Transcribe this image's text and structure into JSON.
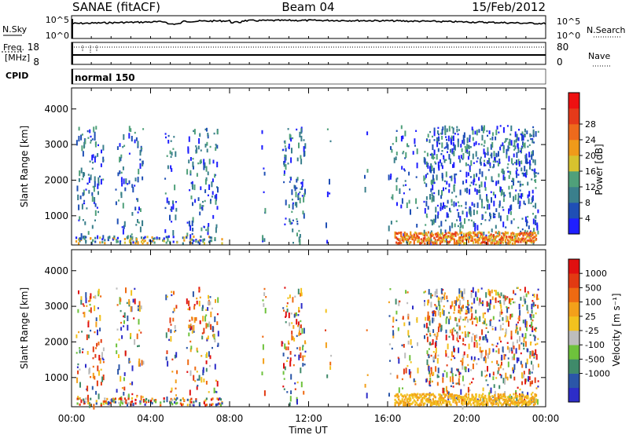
{
  "header": {
    "station": "SANAE (fitACF)",
    "beam": "Beam 04",
    "date": "15/Feb/2012"
  },
  "noise_panel": {
    "left_label": "N.Sky",
    "right_label": "N.Search",
    "left_ticks": [
      "10^5",
      "10^0"
    ],
    "right_ticks": [
      "10^5",
      "10^0"
    ]
  },
  "freq_panel": {
    "left_label_1": "Freq.",
    "left_label_2": "[MHz]",
    "right_label": "Nave",
    "left_ticks": [
      "18",
      "8"
    ],
    "right_ticks": [
      "80",
      "0"
    ]
  },
  "cpid": {
    "label": "CPID",
    "mode": "normal 150"
  },
  "chart_data": [
    {
      "type": "heatmap",
      "quantity": "Power",
      "ylabel": "Slant Range [km]",
      "colorbar_label": "Power [dB]",
      "x_range": [
        "00:00",
        "24:00"
      ],
      "ylim": [
        180,
        4590
      ],
      "y_ticks": [
        1000,
        2000,
        3000,
        4000
      ],
      "colorbar_ticks": [
        "4",
        "8",
        "12",
        "16",
        "20",
        "24",
        "28"
      ],
      "colorbar_colors": [
        "#1f1fff",
        "#1f4fb5",
        "#3a7f8c",
        "#4fa07a",
        "#d7c22e",
        "#f09a1a",
        "#ee6a1c",
        "#e53a1a",
        "#ee1111"
      ]
    },
    {
      "type": "heatmap",
      "quantity": "Velocity",
      "ylabel": "Slant Range [km]",
      "colorbar_label": "Velocity [m s⁻¹]",
      "x_range": [
        "00:00",
        "24:00"
      ],
      "ylim": [
        180,
        4590
      ],
      "y_ticks": [
        1000,
        2000,
        3000,
        4000
      ],
      "colorbar_ticks": [
        "1000",
        "500",
        "100",
        "25",
        "-25",
        "-100",
        "-500",
        "-1000"
      ],
      "colorbar_colors": [
        "#2d2dc8",
        "#2b56a8",
        "#3f8a6a",
        "#6ec23c",
        "#bdbdbd",
        "#f2c21e",
        "#f3a01a",
        "#ee6a12",
        "#e23a12",
        "#e01010"
      ]
    }
  ],
  "x_axis": {
    "label": "Time UT",
    "tick_labels": [
      "00:00",
      "04:00",
      "08:00",
      "12:00",
      "16:00",
      "20:00",
      "00:00"
    ]
  }
}
